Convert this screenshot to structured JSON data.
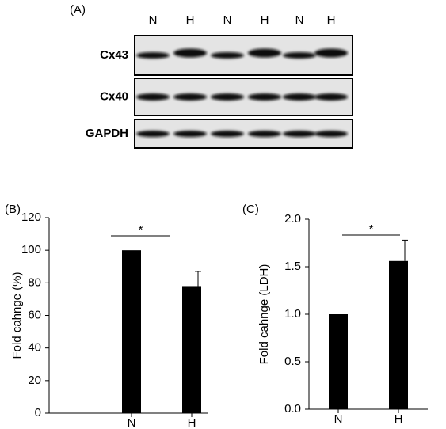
{
  "blot": {
    "panel_label": "(A)",
    "lanes": [
      "N",
      "H",
      "N",
      "H",
      "N",
      "H"
    ],
    "rows": [
      "Cx43",
      "Cx40",
      "GAPDH"
    ]
  },
  "chart_data": [
    {
      "type": "bar",
      "panel_label": "(B)",
      "y_label": "Fold cahnge (%)",
      "categories": [
        "N",
        "H"
      ],
      "values": [
        100,
        78
      ],
      "errors": [
        0,
        9
      ],
      "color": "#000000",
      "ylim": [
        0,
        120
      ],
      "yticks": [
        0,
        20,
        40,
        60,
        80,
        100,
        120
      ],
      "annotation": "*"
    },
    {
      "type": "bar",
      "panel_label": "(C)",
      "y_label": "Fold cahnge (LDH)",
      "categories": [
        "N",
        "H"
      ],
      "values": [
        1.0,
        1.56
      ],
      "errors": [
        0,
        0.22
      ],
      "color": "#000000",
      "ylim": [
        0,
        2.0
      ],
      "yticks": [
        {
          "value": 0,
          "label": "0.0"
        },
        0.5,
        {
          "value": 1,
          "label": "1.0"
        },
        1.5,
        {
          "value": 2,
          "label": "2.0"
        }
      ],
      "annotation": "*"
    }
  ]
}
